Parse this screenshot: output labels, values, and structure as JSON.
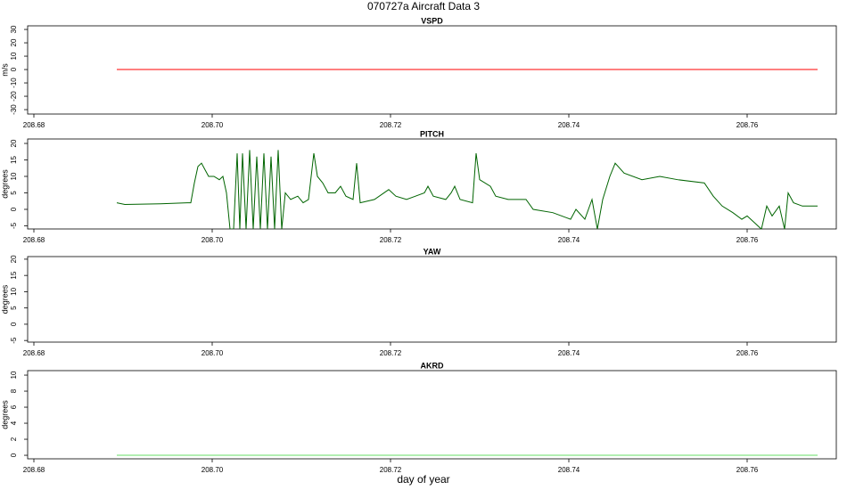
{
  "title": "070727a   Aircraft Data 3",
  "xlabel": "day of year",
  "chart_data": [
    {
      "type": "line",
      "title": "VSPD",
      "ylabel": "m/s",
      "xlim": [
        208.6793,
        208.77
      ],
      "ylim": [
        -33.3,
        32.7
      ],
      "xticks": [
        208.68,
        {
          "value": 208.7,
          "label": "208.70"
        },
        208.72,
        208.74,
        208.76
      ],
      "yticks": [
        -30,
        -20,
        -10,
        0,
        10,
        20,
        30
      ],
      "x": [
        208.6893,
        208.7679
      ],
      "series": [
        {
          "color": "#ff0000",
          "values": [
            0,
            0
          ]
        }
      ]
    },
    {
      "type": "line",
      "title": "PITCH",
      "ylabel": "degrees",
      "xlim": [
        208.6793,
        208.77
      ],
      "ylim": [
        -5.95,
        21.35
      ],
      "xticks": [
        208.68,
        {
          "value": 208.7,
          "label": "208.70"
        },
        208.72,
        208.74,
        208.76
      ],
      "yticks": [
        -5,
        0,
        5,
        10,
        15,
        20
      ],
      "x": [
        208.6893,
        208.6902,
        208.6942,
        208.6972,
        208.6976,
        208.698,
        208.6984,
        208.6988,
        208.6992,
        208.6996,
        208.7002,
        208.7008,
        208.7012,
        208.7016,
        208.702,
        208.7024,
        208.7028,
        208.7031,
        208.7034,
        208.7038,
        208.7042,
        208.7046,
        208.705,
        208.7054,
        208.7058,
        208.7062,
        208.7066,
        208.707,
        208.7074,
        208.7078,
        208.7082,
        208.7088,
        208.7096,
        208.7102,
        208.7108,
        208.7114,
        208.7118,
        208.7124,
        208.713,
        208.7138,
        208.7144,
        208.715,
        208.7158,
        208.7162,
        208.7166,
        208.7182,
        208.7198,
        208.7206,
        208.7218,
        208.7228,
        208.7238,
        208.7242,
        208.7248,
        208.7262,
        208.7268,
        208.7272,
        208.7278,
        208.7292,
        208.7296,
        208.73,
        208.7312,
        208.7318,
        208.7332,
        208.7352,
        208.736,
        208.7382,
        208.7402,
        208.7408,
        208.7418,
        208.7426,
        208.7432,
        208.7438,
        208.7446,
        208.7452,
        208.7462,
        208.7482,
        208.7502,
        208.7522,
        208.7552,
        208.7562,
        208.7572,
        208.7584,
        208.7594,
        208.76,
        208.7608,
        208.7616,
        208.7622,
        208.7628,
        208.7636,
        208.7642,
        208.7646,
        208.7652,
        208.7662,
        208.7679
      ],
      "series": [
        {
          "color": "#006400",
          "values": [
            2,
            1.5,
            1.7,
            2,
            2,
            8,
            13,
            14,
            12,
            10,
            10,
            9,
            10,
            5,
            -6,
            -6,
            17,
            -6,
            17,
            -6,
            18,
            -6,
            16,
            -6,
            17,
            -6,
            16,
            -6,
            18,
            -6,
            5,
            3,
            4,
            2,
            3,
            17,
            10,
            8,
            5,
            5,
            7,
            4,
            3,
            14,
            2,
            3,
            6,
            4,
            3,
            4,
            5,
            7,
            4,
            3,
            5,
            7,
            3,
            2,
            17,
            9,
            7,
            4,
            3,
            3,
            0,
            -1,
            -3,
            0,
            -3,
            3,
            -6,
            3,
            10,
            14,
            11,
            9,
            10,
            9,
            8,
            4,
            1,
            -1,
            -3,
            -2,
            -4,
            -6,
            1,
            -2,
            1,
            -6,
            5,
            2,
            1,
            1
          ]
        }
      ]
    },
    {
      "type": "line",
      "title": "YAW",
      "ylabel": "degrees",
      "xlim": [
        208.6793,
        208.77
      ],
      "ylim": [
        -5.5,
        20.8
      ],
      "xticks": [
        208.68,
        {
          "value": 208.7,
          "label": "208.70"
        },
        208.72,
        208.74,
        208.76
      ],
      "yticks": [
        -5,
        0,
        5,
        10,
        15,
        20
      ],
      "series": []
    },
    {
      "type": "line",
      "title": "AKRD",
      "ylabel": "degrees",
      "xlim": [
        208.6793,
        208.77
      ],
      "ylim": [
        -0.44,
        10.56
      ],
      "xticks": [
        208.68,
        {
          "value": 208.7,
          "label": "208.70"
        },
        208.72,
        208.74,
        208.76
      ],
      "yticks": [
        0,
        2,
        4,
        6,
        8,
        10
      ],
      "x": [
        208.6893,
        208.7679
      ],
      "series": [
        {
          "color": "#66dd66",
          "values": [
            0,
            0
          ]
        }
      ]
    }
  ]
}
